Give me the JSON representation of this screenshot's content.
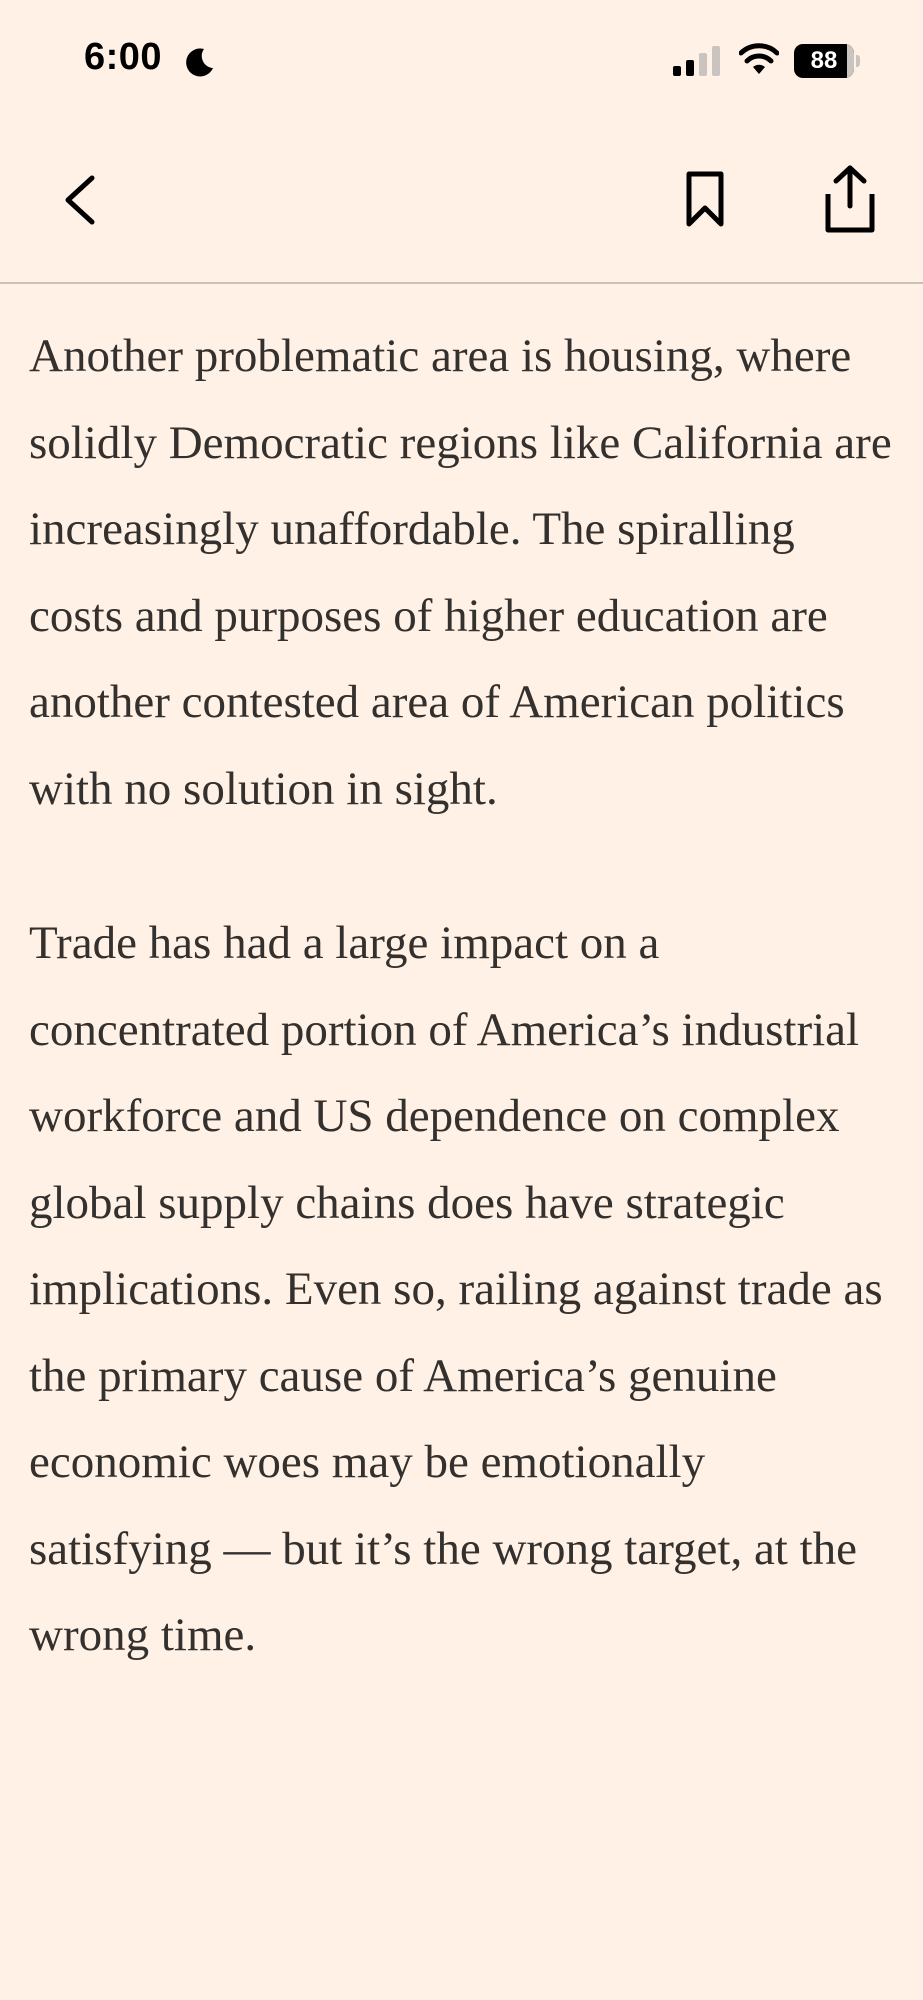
{
  "status_bar": {
    "time": "6:00",
    "battery_level": "88",
    "battery_fraction": 0.88,
    "icons": [
      "moon-icon",
      "signal-icon",
      "wifi-icon",
      "battery-icon"
    ]
  },
  "nav": {
    "icons": [
      "chevron-left-icon",
      "bookmark-icon",
      "share-icon"
    ]
  },
  "article": {
    "paragraphs": [
      "Another problematic area is housing, where solidly Democratic regions like California are increasingly unaffordable. The spiralling costs and purposes of higher education are another contested area of American politics with no solution in sight.",
      "Trade has had a large impact on a concentrated portion of America’s industrial workforce and US dependence on complex global supply chains does have strategic implications. Even so, railing against trade as the primary cause of America’s genuine economic woes may be emotionally satisfying — but it’s the wrong target, at the wrong time."
    ]
  },
  "colors": {
    "background": "#fff1e5",
    "text": "#33302e",
    "divider": "#ccc1b7"
  }
}
